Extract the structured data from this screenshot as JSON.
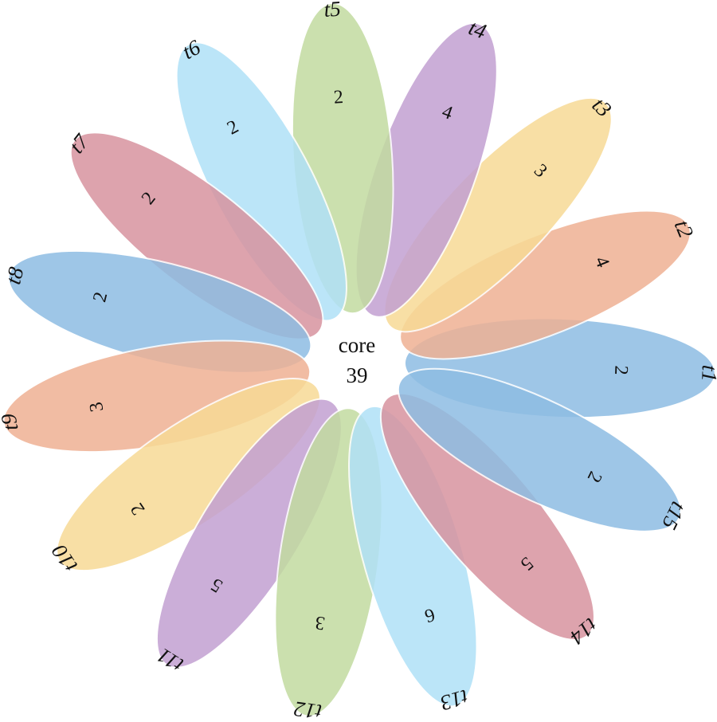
{
  "diagram": {
    "type": "flower-venn",
    "core": {
      "label": "core",
      "count": "39"
    },
    "petals": [
      {
        "name": "t1",
        "count": "2",
        "color": "#8ebde3"
      },
      {
        "name": "t2",
        "count": "4",
        "color": "#efb194"
      },
      {
        "name": "t3",
        "count": "3",
        "color": "#f7da96"
      },
      {
        "name": "t4",
        "count": "4",
        "color": "#c3a0d2"
      },
      {
        "name": "t5",
        "count": "2",
        "color": "#c2dba0"
      },
      {
        "name": "t6",
        "count": "2",
        "color": "#b0e1f7"
      },
      {
        "name": "t7",
        "count": "2",
        "color": "#d8939f"
      },
      {
        "name": "t8",
        "count": "2",
        "color": "#8ebde3"
      },
      {
        "name": "t9",
        "count": "3",
        "color": "#efb194"
      },
      {
        "name": "t10",
        "count": "2",
        "color": "#f7da96"
      },
      {
        "name": "t11",
        "count": "5",
        "color": "#c3a0d2"
      },
      {
        "name": "t12",
        "count": "3",
        "color": "#c2dba0"
      },
      {
        "name": "t13",
        "count": "6",
        "color": "#b0e1f7"
      },
      {
        "name": "t14",
        "count": "5",
        "color": "#d8939f"
      },
      {
        "name": "t15",
        "count": "2",
        "color": "#8ebde3"
      }
    ]
  }
}
